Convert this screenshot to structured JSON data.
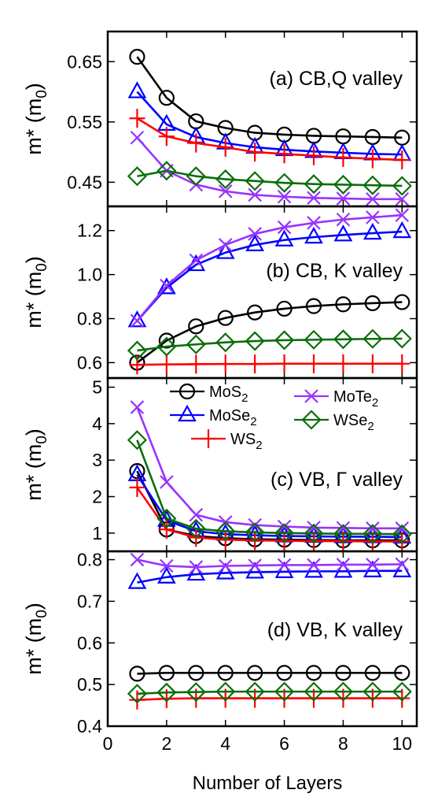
{
  "figure": {
    "xlabel": "Number of Layers",
    "x_ticks": [
      0,
      2,
      4,
      6,
      8,
      10
    ]
  },
  "legend": {
    "entries": [
      {
        "series": "MoS2",
        "base": "MoS",
        "sub": "2"
      },
      {
        "series": "MoSe2",
        "base": "MoSe",
        "sub": "2"
      },
      {
        "series": "WS2",
        "base": "WS",
        "sub": "2"
      },
      {
        "series": "MoTe2",
        "base": "MoTe",
        "sub": "2"
      },
      {
        "series": "WSe2",
        "base": "WSe",
        "sub": "2"
      }
    ]
  },
  "series_style": {
    "MoS2": {
      "color": "#000000",
      "marker": "circle"
    },
    "MoSe2": {
      "color": "#0000ff",
      "marker": "triangle"
    },
    "WS2": {
      "color": "#ff0000",
      "marker": "plus"
    },
    "MoTe2": {
      "color": "#9933ff",
      "marker": "cross"
    },
    "WSe2": {
      "color": "#0a6e0a",
      "marker": "diamond"
    }
  },
  "chart_data": [
    {
      "type": "line",
      "title": "(a) CB,Q valley",
      "ylabel": "m* (m0)",
      "xlim": [
        0,
        10.5
      ],
      "ylim": [
        0.41,
        0.7
      ],
      "yticks": [
        0.45,
        0.55,
        0.65
      ],
      "x": [
        1,
        2,
        3,
        4,
        5,
        6,
        7,
        8,
        9,
        10
      ],
      "series": [
        {
          "name": "MoS2",
          "values": [
            0.658,
            0.59,
            0.551,
            0.54,
            0.532,
            0.529,
            0.527,
            0.526,
            0.525,
            0.524
          ]
        },
        {
          "name": "MoSe2",
          "values": [
            0.6,
            0.546,
            0.525,
            0.515,
            0.508,
            0.504,
            0.501,
            0.499,
            0.497,
            0.496
          ]
        },
        {
          "name": "WS2",
          "values": [
            0.556,
            0.526,
            0.515,
            0.508,
            0.5,
            0.497,
            0.494,
            0.491,
            0.489,
            0.487
          ]
        },
        {
          "name": "MoTe2",
          "values": [
            0.524,
            0.469,
            0.446,
            0.435,
            0.429,
            0.426,
            0.424,
            0.423,
            0.422,
            0.422
          ]
        },
        {
          "name": "WSe2",
          "values": [
            0.46,
            0.469,
            0.46,
            0.455,
            0.452,
            0.449,
            0.447,
            0.446,
            0.445,
            0.444
          ]
        }
      ]
    },
    {
      "type": "line",
      "title": "(b) CB, K valley",
      "ylabel": "m* (m0)",
      "xlim": [
        0,
        10.5
      ],
      "ylim": [
        0.53,
        1.31
      ],
      "yticks": [
        0.6,
        0.8,
        1.0,
        1.2
      ],
      "x": [
        1,
        2,
        3,
        4,
        5,
        6,
        7,
        8,
        9,
        10
      ],
      "series": [
        {
          "name": "MoS2",
          "values": [
            0.6,
            0.7,
            0.765,
            0.803,
            0.828,
            0.845,
            0.857,
            0.865,
            0.87,
            0.875
          ]
        },
        {
          "name": "MoSe2",
          "values": [
            0.79,
            0.94,
            1.045,
            1.1,
            1.135,
            1.157,
            1.17,
            1.18,
            1.188,
            1.195
          ]
        },
        {
          "name": "WS2",
          "values": [
            0.59,
            0.592,
            0.593,
            0.594,
            0.594,
            0.595,
            0.595,
            0.595,
            0.595,
            0.595
          ]
        },
        {
          "name": "MoTe2",
          "values": [
            0.79,
            0.95,
            1.065,
            1.135,
            1.185,
            1.215,
            1.235,
            1.25,
            1.26,
            1.27
          ]
        },
        {
          "name": "WSe2",
          "values": [
            0.655,
            0.673,
            0.683,
            0.692,
            0.698,
            0.702,
            0.704,
            0.706,
            0.708,
            0.709
          ]
        }
      ]
    },
    {
      "type": "line",
      "title": "(c) VB, Γ valley",
      "ylabel": "m* (m0)",
      "xlim": [
        0,
        10.5
      ],
      "ylim": [
        0.5,
        5.25
      ],
      "yticks": [
        1,
        2,
        3,
        4,
        5
      ],
      "x": [
        1,
        2,
        3,
        4,
        5,
        6,
        7,
        8,
        9,
        10
      ],
      "series": [
        {
          "name": "MoS2",
          "values": [
            2.7,
            1.1,
            0.92,
            0.86,
            0.83,
            0.82,
            0.81,
            0.8,
            0.8,
            0.8
          ]
        },
        {
          "name": "MoSe2",
          "values": [
            2.6,
            1.35,
            1.05,
            0.97,
            0.94,
            0.92,
            0.91,
            0.9,
            0.9,
            0.89
          ]
        },
        {
          "name": "WS2",
          "values": [
            2.25,
            1.1,
            0.88,
            0.82,
            0.8,
            0.79,
            0.78,
            0.78,
            0.77,
            0.77
          ]
        },
        {
          "name": "MoTe2",
          "values": [
            4.45,
            2.4,
            1.5,
            1.3,
            1.22,
            1.18,
            1.15,
            1.14,
            1.13,
            1.13
          ]
        },
        {
          "name": "WSe2",
          "values": [
            3.55,
            1.4,
            1.12,
            1.05,
            1.02,
            1.0,
            0.99,
            0.98,
            0.98,
            0.97
          ]
        }
      ]
    },
    {
      "type": "line",
      "title": "(d) VB, K valley",
      "ylabel": "m* (m0)",
      "xlabel": "Number of Layers",
      "xlim": [
        0,
        10.5
      ],
      "ylim": [
        0.4,
        0.82
      ],
      "yticks": [
        0.4,
        0.5,
        0.6,
        0.7,
        0.8
      ],
      "x": [
        1,
        2,
        3,
        4,
        5,
        6,
        7,
        8,
        9,
        10
      ],
      "series": [
        {
          "name": "MoS2",
          "values": [
            0.526,
            0.528,
            0.528,
            0.528,
            0.528,
            0.528,
            0.528,
            0.528,
            0.528,
            0.528
          ]
        },
        {
          "name": "MoSe2",
          "values": [
            0.745,
            0.758,
            0.765,
            0.768,
            0.77,
            0.771,
            0.772,
            0.772,
            0.773,
            0.773
          ]
        },
        {
          "name": "WS2",
          "values": [
            0.463,
            0.466,
            0.467,
            0.467,
            0.467,
            0.467,
            0.467,
            0.467,
            0.467,
            0.467
          ]
        },
        {
          "name": "MoTe2",
          "values": [
            0.8,
            0.785,
            0.782,
            0.785,
            0.786,
            0.787,
            0.787,
            0.788,
            0.788,
            0.789
          ]
        },
        {
          "name": "WSe2",
          "values": [
            0.478,
            0.481,
            0.482,
            0.483,
            0.483,
            0.483,
            0.483,
            0.483,
            0.483,
            0.483
          ]
        }
      ]
    }
  ]
}
